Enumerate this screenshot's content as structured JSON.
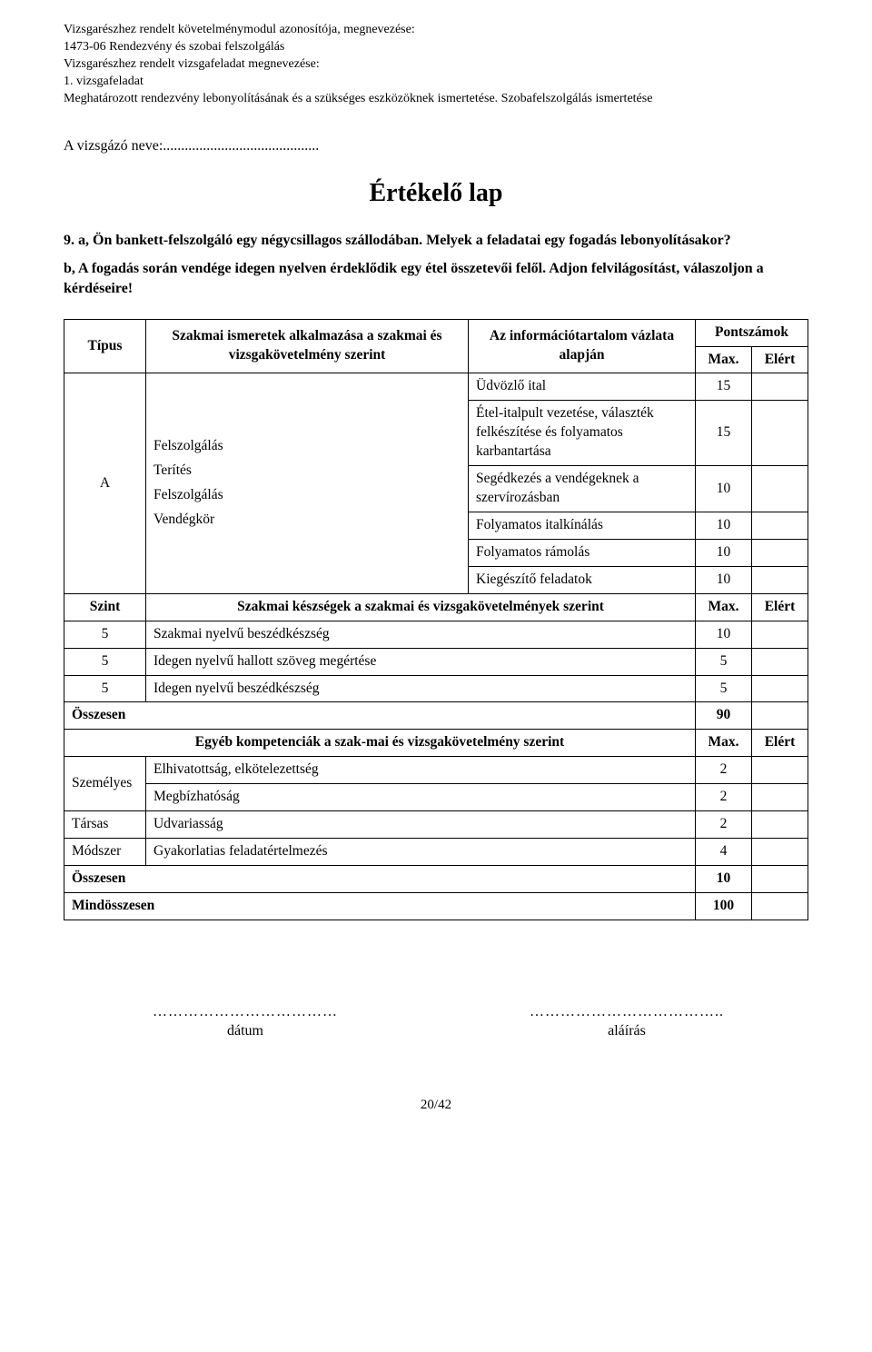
{
  "header": {
    "line1": "Vizsgarészhez rendelt követelménymodul azonosítója, megnevezése:",
    "line2": "1473-06 Rendezvény és szobai felszolgálás",
    "line3": "Vizsgarészhez rendelt vizsgafeladat megnevezése:",
    "line4": "1. vizsgafeladat",
    "line5": "Meghatározott rendezvény lebonyolításának és a szükséges eszközöknek ismertetése. Szobafelszolgálás ismertetése"
  },
  "examinee_label": "A vizsgázó neve:...........................................",
  "title": "Értékelő lap",
  "question": {
    "number": "9.",
    "a": "a, Ön bankett-felszolgáló egy négycsillagos szállodában. Melyek a feladatai egy fogadás lebonyolításakor?",
    "b": "b, A fogadás során vendége idegen nyelven érdeklődik egy étel összetevői felől. Adjon felvilágosítást, válaszoljon a kérdéseire!"
  },
  "table": {
    "colhead_type": "Típus",
    "colhead_knowledge": "Szakmai ismeretek alkalmazása a szakmai és vizsgakövetelmény szerint",
    "colhead_info": "Az információtartalom vázlata alapján",
    "colhead_points": "Pontszámok",
    "colhead_max": "Max.",
    "colhead_got": "Elért",
    "typeA": "A",
    "A_topics": {
      "t1": "Felszolgálás",
      "t2": "Terítés",
      "t3": "Felszolgálás",
      "t4": "Vendégkör"
    },
    "A_rows": [
      {
        "info": "Üdvözlő ital",
        "max": "15"
      },
      {
        "info": "Étel-italpult vezetése, választék felkészítése és folyamatos karbantartása",
        "max": "15"
      },
      {
        "info": "Segédkezés a vendégeknek a szervírozásban",
        "max": "10"
      },
      {
        "info": "Folyamatos italkínálás",
        "max": "10"
      },
      {
        "info": "Folyamatos rámolás",
        "max": "10"
      },
      {
        "info": "Kiegészítő feladatok",
        "max": "10"
      }
    ],
    "szint_label": "Szint",
    "skills_header": "Szakmai készségek a szakmai és vizsgakövetelmények szerint",
    "skills_max": "Max.",
    "skills_got": "Elért",
    "skills": [
      {
        "level": "5",
        "name": "Szakmai nyelvű beszédkészség",
        "max": "10"
      },
      {
        "level": "5",
        "name": "Idegen nyelvű hallott szöveg megértése",
        "max": "5"
      },
      {
        "level": "5",
        "name": "Idegen nyelvű beszédkészség",
        "max": "5"
      }
    ],
    "osszesen_label": "Összesen",
    "osszesen_val": "90",
    "other_header": "Egyéb kompetenciák a szak-mai és vizsgakövetelmény szerint",
    "other_max": "Max.",
    "other_got": "Elért",
    "szemelyes_label": "Személyes",
    "szemelyes_rows": [
      {
        "name": "Elhivatottság, elkötelezettség",
        "max": "2"
      },
      {
        "name": "Megbízhatóság",
        "max": "2"
      }
    ],
    "tarsas_label": "Társas",
    "tarsas_row": {
      "name": "Udvariasság",
      "max": "2"
    },
    "modszer_label": "Módszer",
    "modszer_row": {
      "name": "Gyakorlatias feladatértelmezés",
      "max": "4"
    },
    "osszesen2_label": "Összesen",
    "osszesen2_val": "10",
    "mindosszesen_label": "Mindösszesen",
    "mindosszesen_val": "100"
  },
  "sig": {
    "dots1": "………………………………",
    "date_label": "dátum",
    "dots2": "………………………………..",
    "sign_label": "aláírás"
  },
  "pagenum": "20/42"
}
